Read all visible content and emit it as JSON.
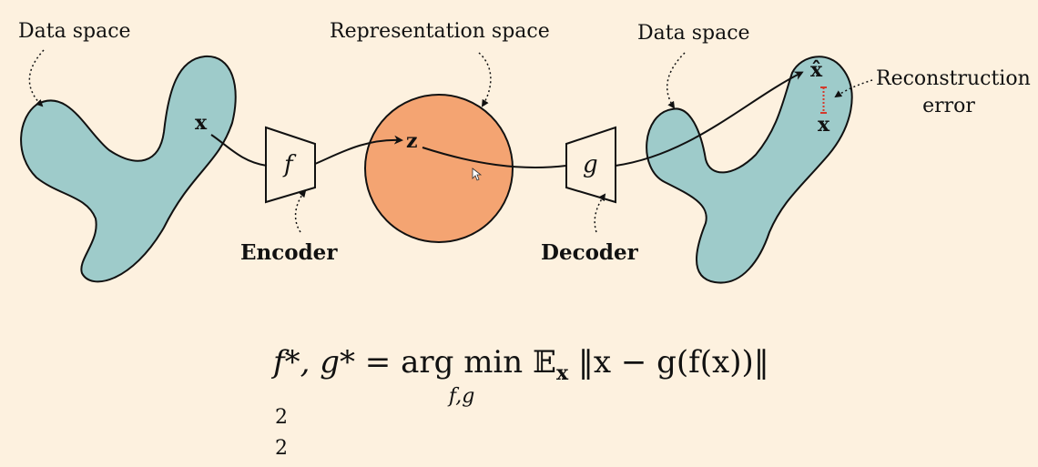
{
  "labels": {
    "data_space_left": "Data space",
    "representation_space": "Representation space",
    "data_space_right": "Data space",
    "reconstruction_error_line1": "Reconstruction",
    "reconstruction_error_line2": "error",
    "encoder": "Encoder",
    "decoder": "Decoder"
  },
  "symbols": {
    "x_input": "x",
    "z_latent": "z",
    "f_function": "f",
    "g_function": "g",
    "x_hat": "x̂",
    "x_target": "x"
  },
  "colors": {
    "background": "#fdf1df",
    "data_blob": "#9ecbca",
    "latent_circle": "#f4a472",
    "error_marker": "#d33a2c"
  },
  "equation": {
    "lhs": "f*, g*",
    "equals": "=",
    "operator": "arg min",
    "operator_sub": "f,g",
    "expectation": "𝔼",
    "expectation_sub": "x",
    "norm_body": "‖x − g(f(x))‖",
    "norm_sup": "2",
    "norm_sub": "2"
  }
}
